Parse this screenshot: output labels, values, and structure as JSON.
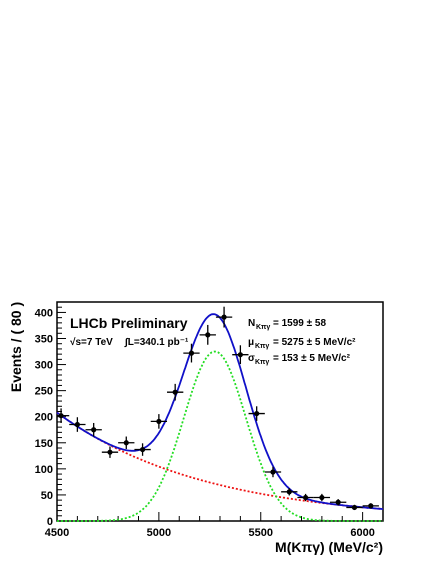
{
  "chart_data": {
    "type": "scatter",
    "title": "",
    "xlabel": "M(Kπγ) (MeV/c²)",
    "ylabel": "Events / ( 80 )",
    "xlim": [
      4500,
      6100
    ],
    "ylim": [
      0,
      420
    ],
    "x_ticks": [
      4500,
      5000,
      5500,
      6000
    ],
    "y_ticks": [
      0,
      50,
      100,
      150,
      200,
      250,
      300,
      350,
      400
    ],
    "grid": false,
    "annotations": {
      "experiment": "LHCb Preliminary",
      "energy": "√s=7 TeV",
      "lumi": "∫L=340.1 pb⁻¹",
      "fit_N": "N",
      "fit_N_sub": "Kπγ",
      "fit_N_value": "=  1599 ± 58",
      "fit_mu": "μ",
      "fit_mu_sub": "Kπγ",
      "fit_mu_value": "=  5275 ± 5 MeV/c²",
      "fit_sigma": "σ",
      "fit_sigma_sub": "Kπγ",
      "fit_sigma_value": "=  153 ± 5 MeV/c²"
    },
    "data_points": {
      "bin_half_width": 40,
      "x": [
        4520,
        4600,
        4680,
        4760,
        4840,
        4920,
        5000,
        5080,
        5160,
        5240,
        5320,
        5400,
        5480,
        5560,
        5640,
        5720,
        5800,
        5880,
        5960,
        6040
      ],
      "y": [
        202,
        185,
        175,
        132,
        150,
        137,
        191,
        247,
        322,
        357,
        391,
        319,
        206,
        94,
        56,
        45,
        45,
        36,
        26,
        29
      ],
      "yerr": [
        14,
        14,
        13,
        11,
        12,
        12,
        14,
        16,
        18,
        19,
        20,
        18,
        14,
        10,
        7,
        7,
        7,
        6,
        5,
        5
      ]
    },
    "fit_curves": [
      {
        "role": "total",
        "color": "#1010c8",
        "style": "solid",
        "signal_yield_norm": 325,
        "mean": 5275,
        "sigma": 153,
        "bkg_a": 208,
        "bkg_slope": 0.00138
      },
      {
        "role": "signal",
        "color": "#22dd22",
        "style": "dotted",
        "amplitude": 325,
        "mean": 5275,
        "sigma": 153
      },
      {
        "role": "background",
        "color": "#ee1111",
        "style": "dotted",
        "bkg_a": 208,
        "bkg_slope": 0.00138
      }
    ]
  }
}
